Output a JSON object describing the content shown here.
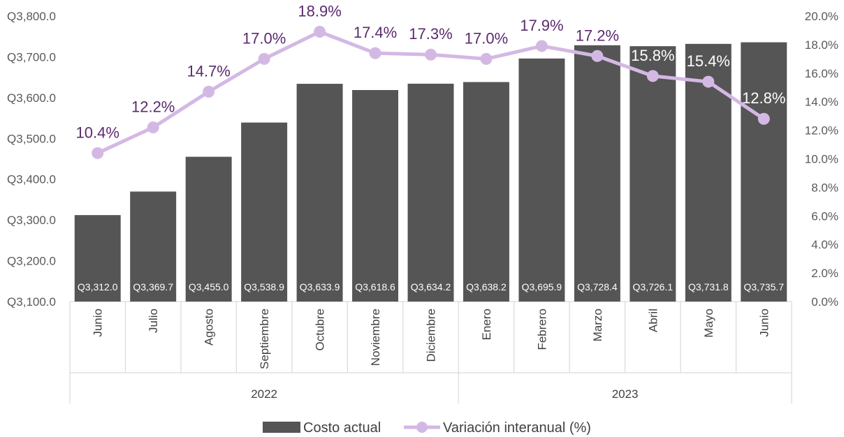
{
  "chart_data": {
    "type": "bar",
    "categories": [
      "Junio",
      "Julio",
      "Agosto",
      "Septiembre",
      "Octubre",
      "Noviembre",
      "Diciembre",
      "Enero",
      "Febrero",
      "Marzo",
      "Abril",
      "Mayo",
      "Junio"
    ],
    "groups": [
      {
        "label": "2022",
        "count": 7
      },
      {
        "label": "2023",
        "count": 6
      }
    ],
    "series": [
      {
        "name": "Costo actual",
        "type": "bar",
        "axis": "left",
        "color": "#555555",
        "values": [
          3312.0,
          3369.7,
          3455.0,
          3538.9,
          3633.9,
          3618.6,
          3634.2,
          3638.2,
          3695.9,
          3728.4,
          3726.1,
          3731.8,
          3735.7
        ],
        "labels": [
          "Q3,312.0",
          "Q3,369.7",
          "Q3,455.0",
          "Q3,538.9",
          "Q3,633.9",
          "Q3,618.6",
          "Q3,634.2",
          "Q3,638.2",
          "Q3,695.9",
          "Q3,728.4",
          "Q3,726.1",
          "Q3,731.8",
          "Q3,735.7"
        ]
      },
      {
        "name": "Variación interanual (%)",
        "type": "line",
        "axis": "right",
        "color": "#d4b8e4",
        "label_color": "#5b2a6e",
        "values": [
          10.4,
          12.2,
          14.7,
          17.0,
          18.9,
          17.4,
          17.3,
          17.0,
          17.9,
          17.2,
          15.8,
          15.4,
          12.8
        ],
        "labels": [
          "10.4%",
          "12.2%",
          "14.7%",
          "17.0%",
          "18.9%",
          "17.4%",
          "17.3%",
          "17.0%",
          "17.9%",
          "17.2%",
          "15.8%",
          "15.4%",
          "12.8%"
        ]
      }
    ],
    "y_left": {
      "min": 3100,
      "max": 3800,
      "step": 100,
      "tick_labels": [
        "Q3,100.0",
        "Q3,200.0",
        "Q3,300.0",
        "Q3,400.0",
        "Q3,500.0",
        "Q3,600.0",
        "Q3,700.0",
        "Q3,800.0"
      ]
    },
    "y_right": {
      "min": 0,
      "max": 20,
      "step": 2,
      "tick_labels": [
        "0.0%",
        "2.0%",
        "4.0%",
        "6.0%",
        "8.0%",
        "10.0%",
        "12.0%",
        "14.0%",
        "16.0%",
        "18.0%",
        "20.0%"
      ]
    },
    "legend": {
      "position": "bottom",
      "items": [
        "Costo actual",
        "Variación interanual (%)"
      ]
    },
    "grid": false
  }
}
